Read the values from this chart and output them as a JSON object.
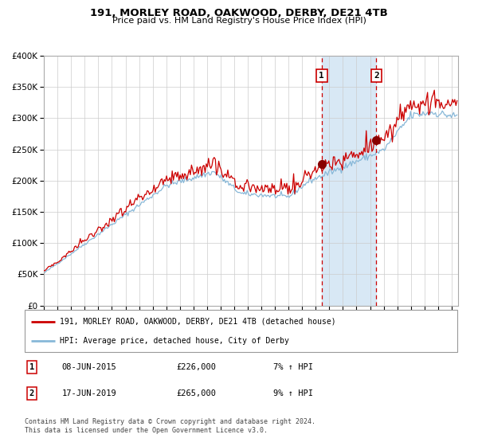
{
  "title1": "191, MORLEY ROAD, OAKWOOD, DERBY, DE21 4TB",
  "title2": "Price paid vs. HM Land Registry's House Price Index (HPI)",
  "legend_line1": "191, MORLEY ROAD, OAKWOOD, DERBY, DE21 4TB (detached house)",
  "legend_line2": "HPI: Average price, detached house, City of Derby",
  "annotation1_date": "08-JUN-2015",
  "annotation1_price": "£226,000",
  "annotation1_hpi": "7% ↑ HPI",
  "annotation2_date": "17-JUN-2019",
  "annotation2_price": "£265,000",
  "annotation2_hpi": "9% ↑ HPI",
  "footer": "Contains HM Land Registry data © Crown copyright and database right 2024.\nThis data is licensed under the Open Government Licence v3.0.",
  "red_line_color": "#cc0000",
  "blue_line_color": "#88b8d8",
  "marker_color": "#880000",
  "vline_color": "#cc0000",
  "shade_color": "#d8e8f5",
  "ylim": [
    0,
    400000
  ],
  "yticks": [
    0,
    50000,
    100000,
    150000,
    200000,
    250000,
    300000,
    350000,
    400000
  ],
  "year_start": 1995,
  "year_end": 2025,
  "purchase1_year": 2015.44,
  "purchase2_year": 2019.46,
  "purchase1_value": 226000,
  "purchase2_value": 265000
}
